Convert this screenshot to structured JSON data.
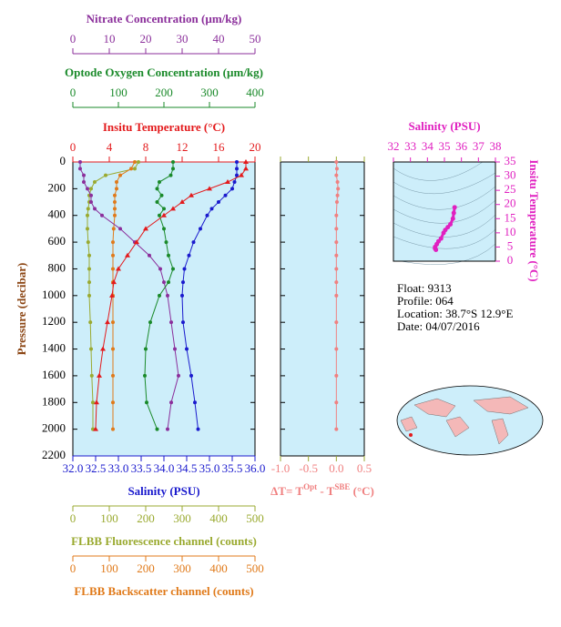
{
  "chart_data": [
    {
      "type": "profile",
      "ylabel": "Pressure (decibar)",
      "ylim": [
        0,
        2200
      ],
      "y_inverted": true,
      "yticks": [
        0,
        200,
        400,
        600,
        800,
        1000,
        1200,
        1400,
        1600,
        1800,
        2000,
        2200
      ],
      "axes": [
        {
          "label": "Nitrate Concentration (µm/kg)",
          "side": "top",
          "color": "#8b2f9b",
          "xlim": [
            0,
            50
          ],
          "xticks": [
            0,
            10,
            20,
            30,
            40,
            50
          ]
        },
        {
          "label": "Optode Oxygen Concentration (µm/kg)",
          "side": "top",
          "color": "#1a8a2a",
          "xlim": [
            0,
            400
          ],
          "xticks": [
            0,
            100,
            200,
            300,
            400
          ]
        },
        {
          "label": "Insitu Temperature (°C)",
          "side": "top",
          "color": "#e31a1c",
          "xlim": [
            0,
            20
          ],
          "xticks": [
            0,
            4,
            8,
            12,
            16,
            20
          ]
        },
        {
          "label": "Salinity (PSU)",
          "side": "bottom",
          "color": "#1a1acd",
          "xlim": [
            32,
            36
          ],
          "xticks": [
            {
              "value": 32,
              "label": "32.0"
            },
            32.5,
            {
              "value": 33,
              "label": "33.0"
            },
            33.5,
            {
              "value": 34,
              "label": "34.0"
            },
            34.5,
            {
              "value": 35,
              "label": "35.0"
            },
            35.5,
            {
              "value": 36,
              "label": "36.0"
            }
          ]
        },
        {
          "label": "FLBB Fluorescence channel (counts)",
          "side": "bottom",
          "color": "#9aaa30",
          "xlim": [
            0,
            500
          ],
          "xticks": [
            0,
            100,
            200,
            300,
            400,
            500
          ]
        },
        {
          "label": "FLBB Backscatter channel (counts)",
          "side": "bottom",
          "color": "#e07a1a",
          "xlim": [
            0,
            500
          ],
          "xticks": [
            0,
            100,
            200,
            300,
            400,
            500
          ]
        }
      ],
      "series": [
        {
          "axis": 4,
          "color": "#9aaa30",
          "marker": "circle",
          "pressure": [
            0,
            50,
            100,
            150,
            200,
            250,
            300,
            350,
            400,
            500,
            600,
            700,
            800,
            900,
            1000,
            1200,
            1400,
            1600,
            1800,
            2000
          ],
          "values": [
            180,
            170,
            90,
            60,
            50,
            45,
            45,
            42,
            40,
            40,
            42,
            45,
            45,
            45,
            45,
            48,
            50,
            52,
            55,
            55
          ]
        },
        {
          "axis": 5,
          "color": "#e07a1a",
          "marker": "circle",
          "pressure": [
            0,
            50,
            100,
            150,
            200,
            250,
            300,
            350,
            400,
            500,
            600,
            700,
            800,
            900,
            1000,
            1200,
            1400,
            1600,
            1800,
            2000
          ],
          "values": [
            170,
            160,
            130,
            120,
            120,
            115,
            115,
            115,
            115,
            112,
            110,
            110,
            110,
            110,
            110,
            110,
            110,
            110,
            110,
            110
          ]
        },
        {
          "axis": 0,
          "color": "#8b2f9b",
          "marker": "circle",
          "pressure": [
            0,
            50,
            100,
            150,
            200,
            250,
            300,
            350,
            400,
            500,
            600,
            700,
            800,
            900,
            1000,
            1200,
            1400,
            1600,
            1800,
            2000
          ],
          "values": [
            2,
            2,
            3,
            3,
            4,
            5,
            5,
            6,
            8,
            13,
            17,
            21,
            24,
            25,
            26,
            27,
            28,
            29,
            27,
            26
          ]
        },
        {
          "axis": 1,
          "color": "#1a8a2a",
          "marker": "circle",
          "pressure": [
            0,
            50,
            100,
            150,
            200,
            250,
            300,
            350,
            400,
            500,
            600,
            700,
            800,
            900,
            1000,
            1200,
            1400,
            1600,
            1800,
            2000
          ],
          "values": [
            220,
            220,
            215,
            190,
            185,
            195,
            185,
            200,
            190,
            200,
            205,
            210,
            220,
            210,
            190,
            170,
            160,
            158,
            162,
            185
          ]
        },
        {
          "axis": 3,
          "color": "#1a1acd",
          "marker": "circle",
          "pressure": [
            0,
            50,
            100,
            150,
            200,
            250,
            300,
            350,
            400,
            500,
            600,
            700,
            800,
            900,
            1000,
            1200,
            1400,
            1600,
            1800,
            2000
          ],
          "values": [
            35.6,
            35.6,
            35.6,
            35.55,
            35.5,
            35.35,
            35.2,
            35.05,
            34.95,
            34.8,
            34.65,
            34.55,
            34.45,
            34.42,
            34.4,
            34.42,
            34.5,
            34.6,
            34.68,
            34.75
          ]
        },
        {
          "axis": 2,
          "color": "#e31a1c",
          "marker": "triangle",
          "pressure": [
            0,
            50,
            100,
            150,
            200,
            250,
            300,
            350,
            400,
            500,
            600,
            700,
            800,
            900,
            1000,
            1200,
            1400,
            1600,
            1800,
            2000
          ],
          "values": [
            19,
            19,
            18.5,
            17,
            15,
            13,
            12,
            11,
            10,
            8,
            7,
            6,
            5,
            4.5,
            4.3,
            3.8,
            3.3,
            2.9,
            2.6,
            2.5
          ]
        }
      ]
    },
    {
      "type": "profile",
      "ylim": [
        0,
        2200
      ],
      "y_inverted": true,
      "yticks": [
        0,
        200,
        400,
        600,
        800,
        1000,
        1200,
        1400,
        1600,
        1800,
        2000,
        2200
      ],
      "xlabel_parts": [
        "ΔT= T",
        "Opt",
        " - T",
        "SBE",
        " (°C)"
      ],
      "xlim": [
        -1,
        0.5
      ],
      "xticks": [
        {
          "value": -1,
          "label": "-1.0"
        },
        -0.5,
        {
          "value": 0,
          "label": "0.0"
        },
        0.5
      ],
      "series": [
        {
          "color": "#f08080",
          "marker": "circle",
          "pressure": [
            0,
            50,
            100,
            150,
            200,
            250,
            300,
            400,
            500,
            600,
            700,
            800,
            900,
            1000,
            1200,
            1400,
            1600,
            1800,
            2000
          ],
          "values": [
            0,
            0.01,
            0,
            0.02,
            0.03,
            0.02,
            0.01,
            0,
            0,
            0,
            0,
            0,
            0,
            0,
            0,
            0,
            0,
            0,
            0
          ]
        }
      ]
    },
    {
      "type": "scatter",
      "xlabel": "Salinity (PSU)",
      "ylabel": "Insitu Temperature (°C)",
      "color": "#e020c0",
      "xlim": [
        32,
        38
      ],
      "xticks": [
        32,
        33,
        34,
        35,
        36,
        37,
        38
      ],
      "ylim": [
        0,
        35
      ],
      "yticks": [
        0,
        5,
        10,
        15,
        20,
        25,
        30,
        35
      ],
      "x": [
        35.6,
        35.55,
        35.5,
        35.35,
        35.2,
        35.05,
        34.95,
        34.8,
        34.65,
        34.55,
        34.45,
        34.45,
        34.5
      ],
      "values": [
        19,
        17,
        15,
        13,
        12,
        11,
        10,
        8,
        7,
        6,
        5,
        4.5,
        4
      ]
    }
  ],
  "float_info": [
    "Float:  9313",
    "Profile:  064",
    "Location:  38.7°S  12.9°E",
    "Date:  04/07/2016"
  ]
}
